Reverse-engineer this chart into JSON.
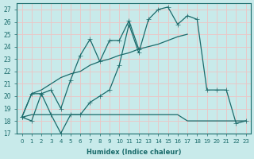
{
  "xlabel": "Humidex (Indice chaleur)",
  "background_color": "#c8eaea",
  "grid_color": "#e8c8c8",
  "line_color": "#1a6b6b",
  "x_values": [
    0,
    1,
    2,
    3,
    4,
    5,
    6,
    7,
    8,
    9,
    10,
    11,
    12,
    13,
    14,
    15,
    16,
    17,
    18,
    19,
    20,
    21,
    22,
    23
  ],
  "series1": [
    18.3,
    18.0,
    20.2,
    18.5,
    17.0,
    18.5,
    18.5,
    19.5,
    20.0,
    20.5,
    22.5,
    25.8,
    23.5,
    26.2,
    27.0,
    27.2,
    25.8,
    26.5,
    26.2,
    20.5,
    20.5,
    20.5,
    17.8,
    18.0
  ],
  "series2": [
    18.3,
    20.2,
    20.2,
    20.5,
    19.0,
    21.3,
    23.3,
    24.6,
    22.8,
    24.5,
    24.5,
    26.1,
    23.8,
    null,
    null,
    null,
    null,
    null,
    null,
    null,
    null,
    null,
    null,
    null
  ],
  "series3": [
    18.3,
    20.2,
    20.5,
    21.0,
    21.5,
    21.8,
    22.0,
    22.5,
    22.8,
    23.0,
    23.3,
    23.5,
    23.8,
    24.0,
    24.2,
    24.5,
    24.8,
    25.0,
    null,
    null,
    null,
    null,
    null,
    null
  ],
  "series4": [
    18.3,
    18.5,
    18.5,
    18.5,
    18.5,
    18.5,
    18.5,
    18.5,
    18.5,
    18.5,
    18.5,
    18.5,
    18.5,
    18.5,
    18.5,
    18.5,
    18.5,
    18.0,
    18.0,
    18.0,
    18.0,
    18.0,
    18.0,
    18.0
  ],
  "ylim": [
    17,
    27.5
  ],
  "xlim": [
    -0.5,
    23.5
  ],
  "yticks": [
    17,
    18,
    19,
    20,
    21,
    22,
    23,
    24,
    25,
    26,
    27
  ],
  "xticks": [
    0,
    1,
    2,
    3,
    4,
    5,
    6,
    7,
    8,
    9,
    10,
    11,
    12,
    13,
    14,
    15,
    16,
    17,
    18,
    19,
    20,
    21,
    22,
    23
  ]
}
